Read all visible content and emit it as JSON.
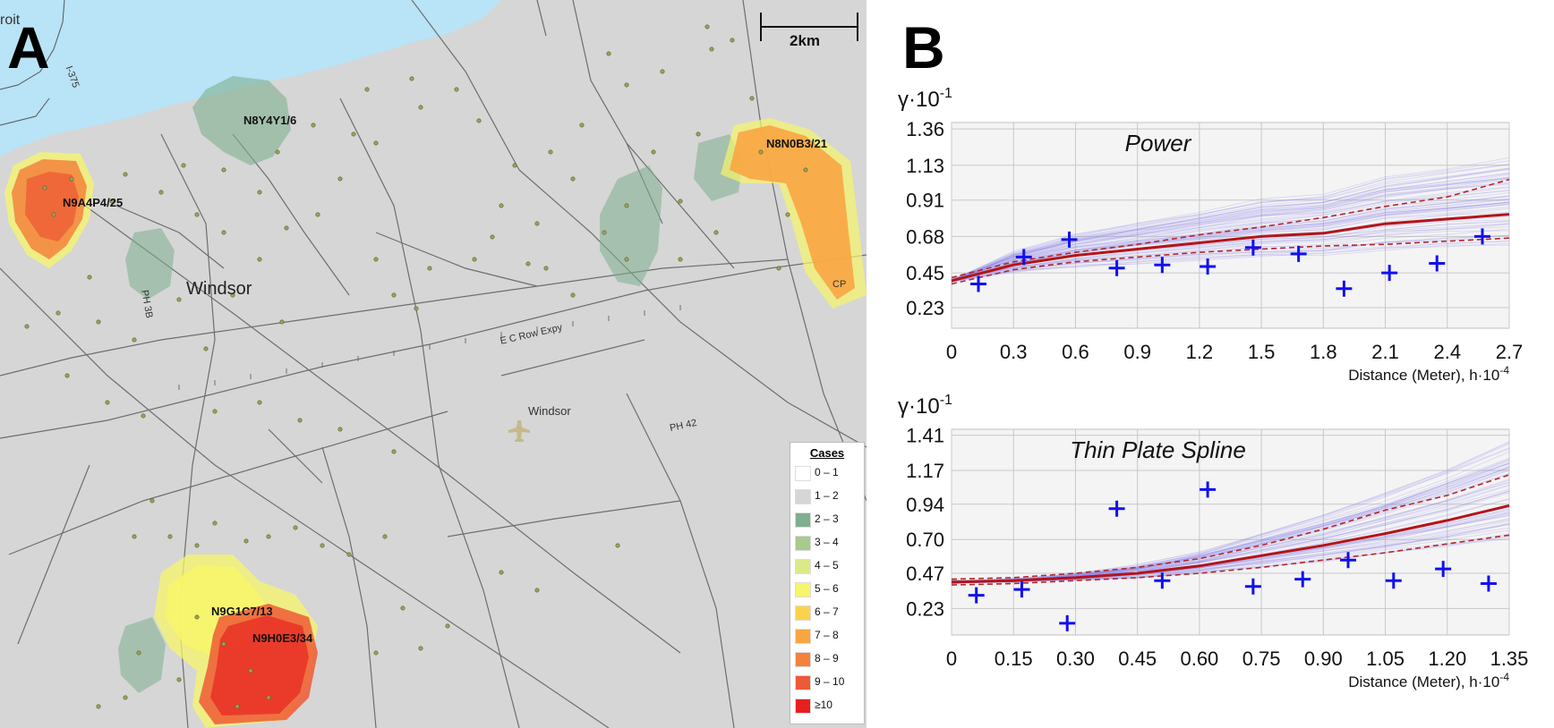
{
  "panels": {
    "map_letter": "A",
    "chart_letter": "B"
  },
  "map": {
    "place_labels": [
      "roit",
      "Windsor",
      "Windsor"
    ],
    "street_labels": [
      "PH 3B",
      "E C Row Expy",
      "PH 42",
      "CP",
      "I-375"
    ],
    "scalebar": "2km",
    "hotspots": [
      {
        "label": "N8Y4Y1/6"
      },
      {
        "label": "N9A4P4/25"
      },
      {
        "label": "N8N0B3/21"
      },
      {
        "label": "N9G1C7/13"
      },
      {
        "label": "N9H0E3/34"
      }
    ],
    "legend": {
      "title": "Cases",
      "items": [
        {
          "label": "0 – 1",
          "color": "#ffffff"
        },
        {
          "label": "1 – 2",
          "color": "#d6d6d6"
        },
        {
          "label": "2 – 3",
          "color": "#7faf8f"
        },
        {
          "label": "3 – 4",
          "color": "#a9c98f"
        },
        {
          "label": "4 – 5",
          "color": "#dce98a"
        },
        {
          "label": "5 – 6",
          "color": "#f7f56a"
        },
        {
          "label": "6 – 7",
          "color": "#fbd24b"
        },
        {
          "label": "7 – 8",
          "color": "#f9a542"
        },
        {
          "label": "8 – 9",
          "color": "#f3823c"
        },
        {
          "label": "9 – 10",
          "color": "#ee5a35"
        },
        {
          "label": "≥10",
          "color": "#e61f1f"
        }
      ]
    },
    "colors": {
      "water": "#b9e3f6",
      "land": "#d6d6d6",
      "road": "#6e6e6e",
      "point": "#9aa35a"
    }
  },
  "chart_data": [
    {
      "type": "line",
      "title": "Power",
      "ylabel_base": "γ·10",
      "ylabel_exp": "-1",
      "xlabel_base": "Distance (Meter), h·10",
      "xlabel_exp": "-4",
      "xlim": [
        0,
        2.7
      ],
      "ylim": [
        0.1,
        1.4
      ],
      "x_ticks": [
        "0",
        "0.3",
        "0.6",
        "0.9",
        "1.2",
        "1.5",
        "1.8",
        "2.1",
        "2.4",
        "2.7"
      ],
      "y_ticks": [
        "0.23",
        "0.45",
        "0.68",
        "0.91",
        "1.13",
        "1.36"
      ],
      "y_tick_values": [
        0.23,
        0.45,
        0.68,
        0.91,
        1.13,
        1.36
      ],
      "empirical": {
        "x": [
          0.13,
          0.35,
          0.57,
          0.8,
          1.02,
          1.24,
          1.46,
          1.68,
          1.9,
          2.12,
          2.35,
          2.57
        ],
        "y": [
          0.38,
          0.55,
          0.66,
          0.48,
          0.5,
          0.49,
          0.61,
          0.57,
          0.35,
          0.45,
          0.51,
          0.68
        ]
      },
      "fit": {
        "x": [
          0,
          0.3,
          0.6,
          0.9,
          1.2,
          1.5,
          1.8,
          2.1,
          2.4,
          2.7
        ],
        "y": [
          0.4,
          0.5,
          0.56,
          0.6,
          0.64,
          0.68,
          0.7,
          0.76,
          0.79,
          0.82
        ]
      },
      "envelope_upper": {
        "x": [
          0,
          0.3,
          0.6,
          0.9,
          1.2,
          1.5,
          1.8,
          2.1,
          2.4,
          2.7
        ],
        "y": [
          0.42,
          0.52,
          0.58,
          0.63,
          0.69,
          0.74,
          0.8,
          0.87,
          0.93,
          1.04
        ]
      },
      "envelope_lower": {
        "x": [
          0,
          0.3,
          0.6,
          0.9,
          1.2,
          1.5,
          1.8,
          2.1,
          2.4,
          2.7
        ],
        "y": [
          0.38,
          0.47,
          0.52,
          0.55,
          0.58,
          0.6,
          0.62,
          0.63,
          0.65,
          0.67
        ]
      }
    },
    {
      "type": "line",
      "title": "Thin Plate Spline",
      "ylabel_base": "γ·10",
      "ylabel_exp": "-1",
      "xlabel_base": "Distance (Meter), h·10",
      "xlabel_exp": "-4",
      "xlim": [
        0,
        1.35
      ],
      "ylim": [
        0.05,
        1.45
      ],
      "x_ticks": [
        "0",
        "0.15",
        "0.30",
        "0.45",
        "0.60",
        "0.75",
        "0.90",
        "1.05",
        "1.20",
        "1.35"
      ],
      "y_ticks": [
        "0.23",
        "0.47",
        "0.70",
        "0.94",
        "1.17",
        "1.41"
      ],
      "y_tick_values": [
        0.23,
        0.47,
        0.7,
        0.94,
        1.17,
        1.41
      ],
      "empirical": {
        "x": [
          0.06,
          0.17,
          0.28,
          0.4,
          0.51,
          0.62,
          0.73,
          0.85,
          0.96,
          1.07,
          1.19,
          1.3
        ],
        "y": [
          0.32,
          0.36,
          0.13,
          0.91,
          0.42,
          1.04,
          0.38,
          0.43,
          0.56,
          0.42,
          0.5,
          0.4
        ]
      },
      "fit": {
        "x": [
          0,
          0.15,
          0.3,
          0.45,
          0.6,
          0.75,
          0.9,
          1.05,
          1.2,
          1.35
        ],
        "y": [
          0.41,
          0.42,
          0.44,
          0.47,
          0.52,
          0.59,
          0.66,
          0.74,
          0.83,
          0.93
        ]
      },
      "envelope_upper": {
        "x": [
          0,
          0.15,
          0.3,
          0.45,
          0.6,
          0.75,
          0.9,
          1.05,
          1.2,
          1.35
        ],
        "y": [
          0.43,
          0.44,
          0.47,
          0.51,
          0.57,
          0.66,
          0.77,
          0.9,
          1.0,
          1.14
        ]
      },
      "envelope_lower": {
        "x": [
          0,
          0.15,
          0.3,
          0.45,
          0.6,
          0.75,
          0.9,
          1.05,
          1.2,
          1.35
        ],
        "y": [
          0.39,
          0.4,
          0.42,
          0.44,
          0.47,
          0.51,
          0.56,
          0.61,
          0.67,
          0.73
        ]
      }
    }
  ]
}
